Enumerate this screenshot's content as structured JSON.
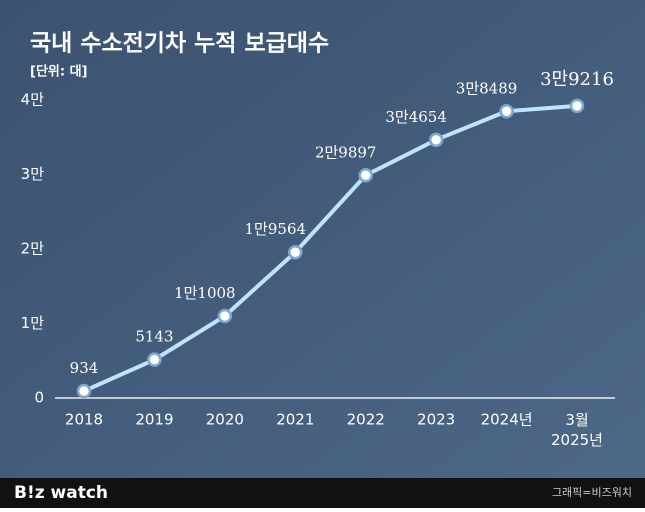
{
  "chart_data": {
    "type": "line",
    "title": "국내 수소전기차 누적 보급대수",
    "subtitle": "[단위: 대]",
    "categories": [
      "2018",
      "2019",
      "2020",
      "2021",
      "2022",
      "2023",
      "2024년",
      "3월\n2025년"
    ],
    "series": [
      {
        "name": "누적 보급대수",
        "color": "#bfe2ff",
        "values": [
          934,
          5143,
          11008,
          19564,
          29897,
          34654,
          38489,
          39216
        ],
        "value_labels": [
          "934",
          "5143",
          "1만1008",
          "1만9564",
          "2만9897",
          "3만4654",
          "3만8489",
          "3만9216"
        ]
      }
    ],
    "ylim": [
      0,
      40000
    ],
    "yticks": [
      0,
      {
        "value": 10000,
        "label": "1만"
      },
      {
        "value": 20000,
        "label": "2만"
      },
      {
        "value": 30000,
        "label": "3만"
      },
      {
        "value": 40000,
        "label": "4만"
      }
    ],
    "grid": false
  },
  "footer": {
    "logo": "B!z watch",
    "credit": "그래픽=비즈워치"
  }
}
